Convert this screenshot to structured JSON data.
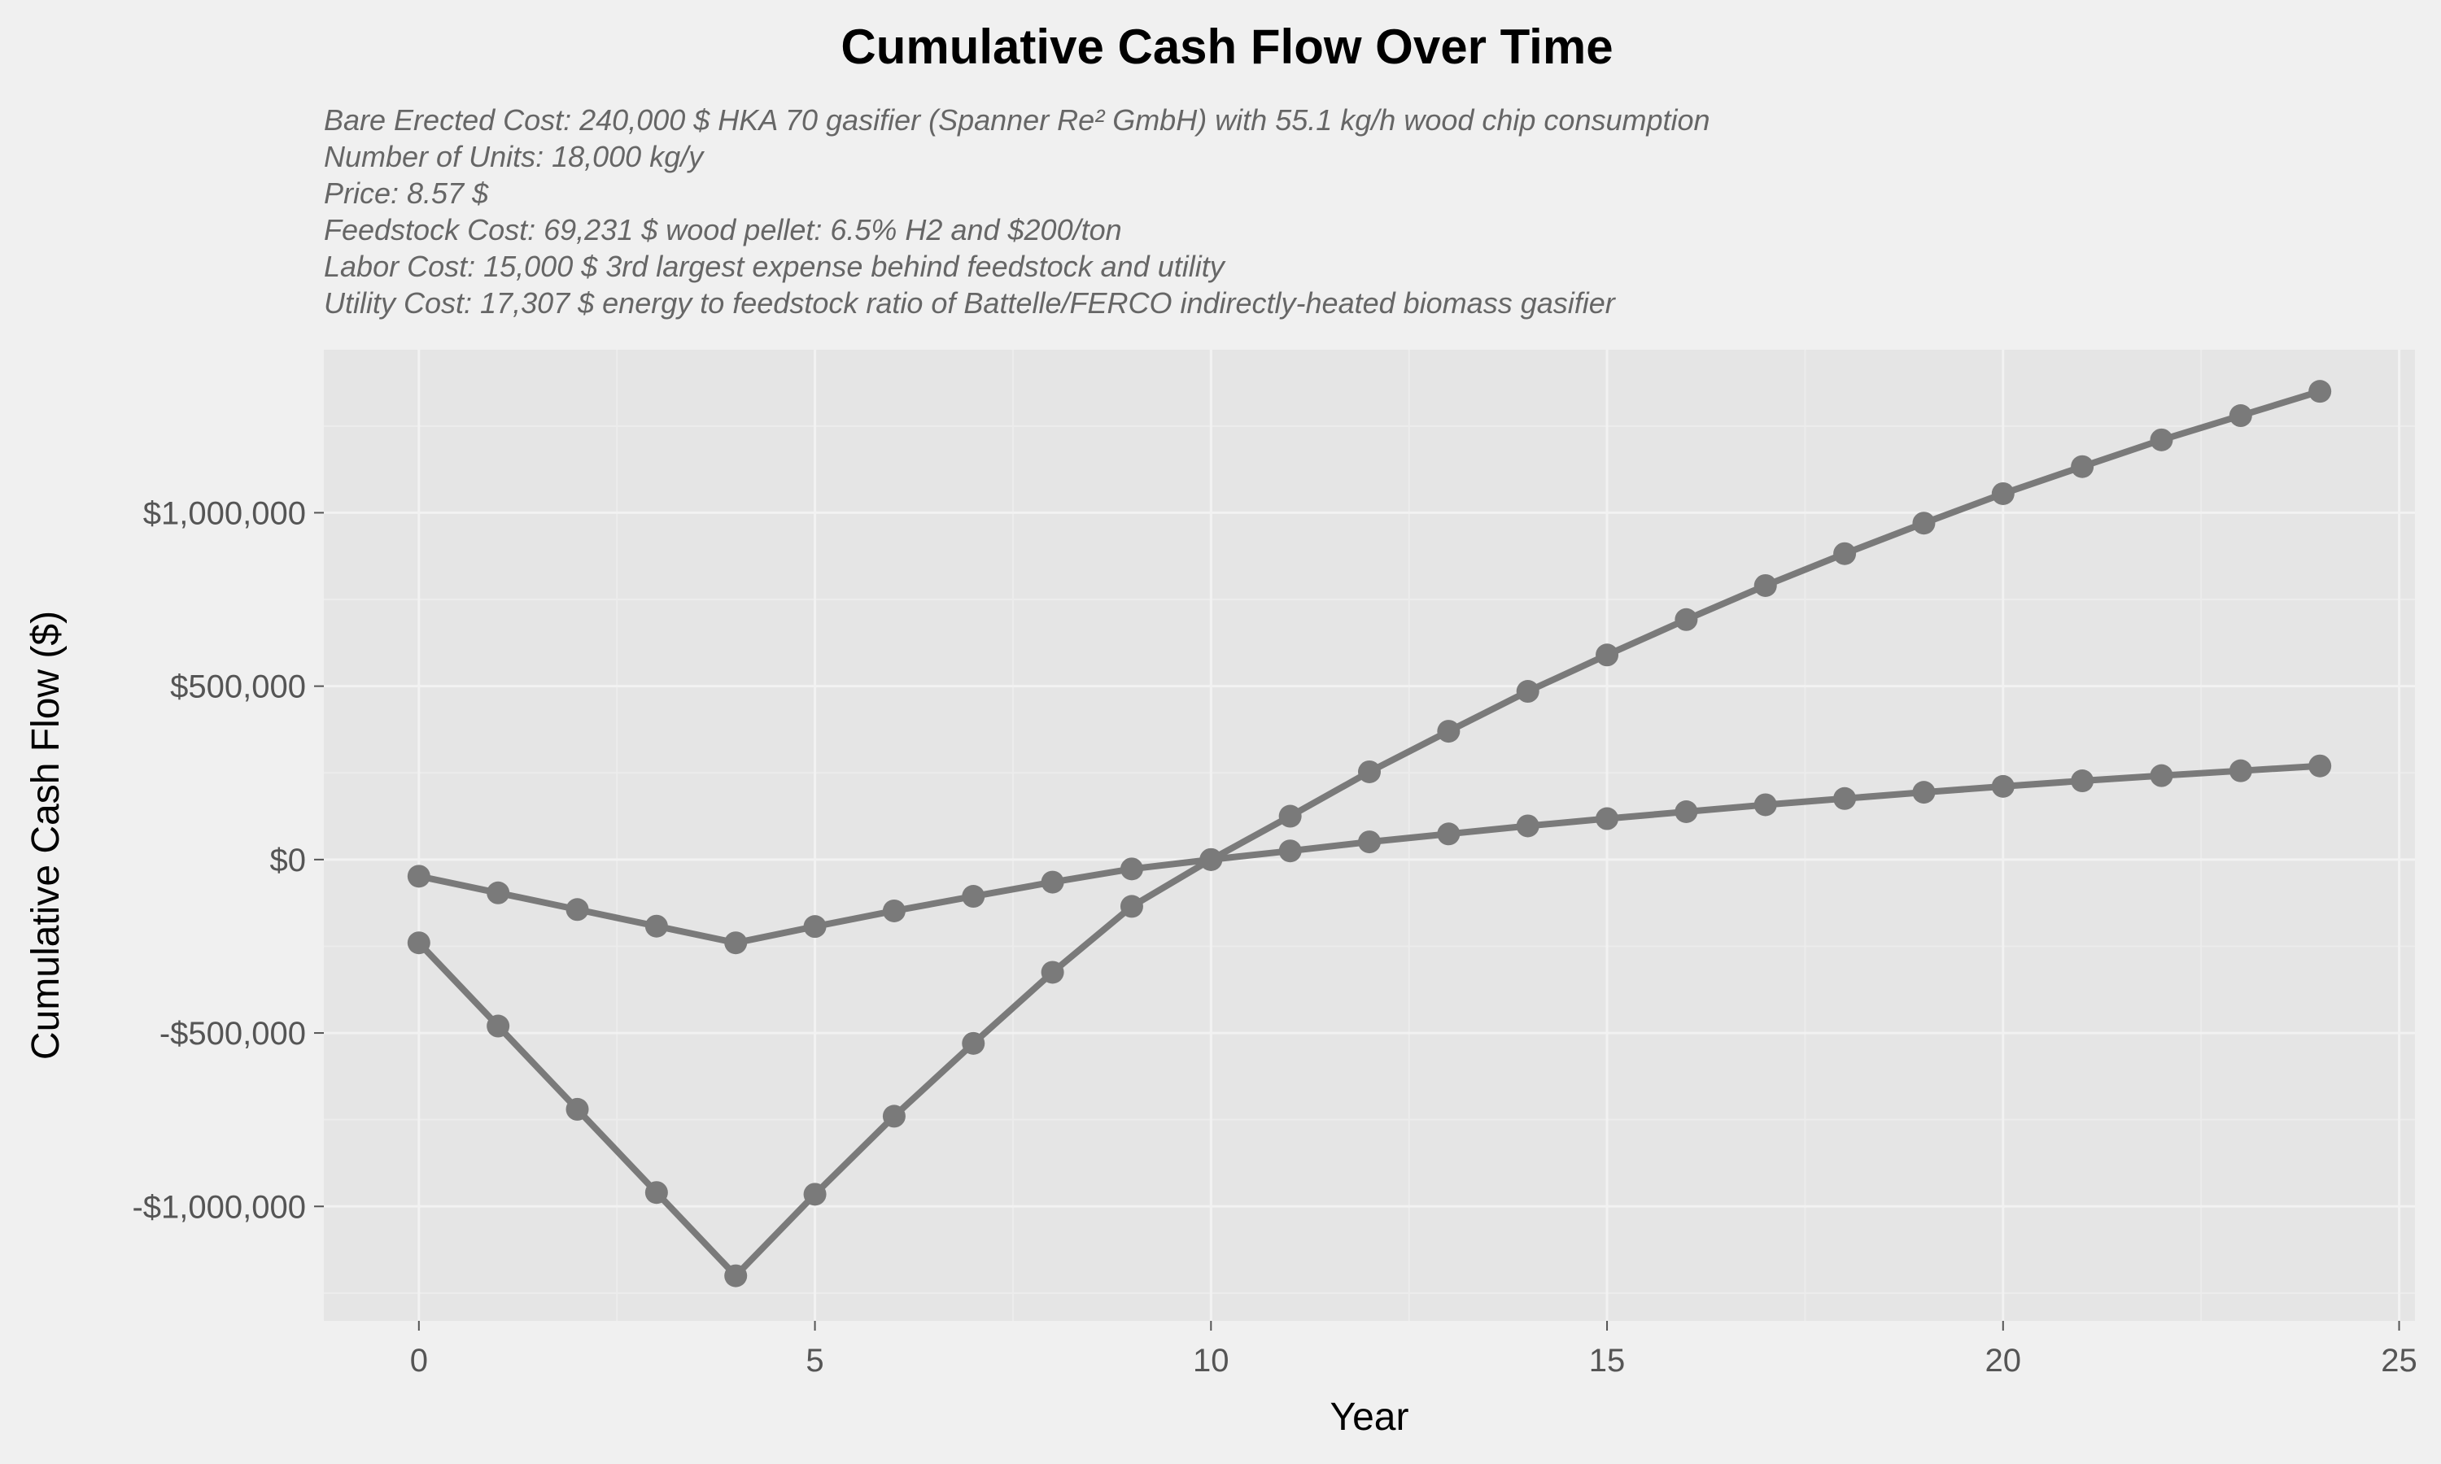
{
  "chart_data": {
    "type": "line",
    "title": "Cumulative Cash Flow Over Time",
    "subtitle_lines": [
      "Bare Erected Cost: 240,000 $ HKA 70 gasifier (Spanner Re² GmbH) with 55.1 kg/h wood chip consumption",
      "Number of Units: 18,000 kg/y",
      "Price: 8.57 $",
      "Feedstock Cost: 69,231 $ wood pellet: 6.5% H2 and $200/ton",
      "Labor Cost: 15,000 $ 3rd largest expense behind feedstock and utility",
      "Utility Cost: 17,307 $ energy to feedstock ratio of Battelle/FERCO indirectly-heated biomass gasifier"
    ],
    "xlabel": "Year",
    "ylabel": "Cumulative Cash Flow ($)",
    "xlim": [
      -1.2,
      25.2
    ],
    "ylim": [
      -1330000,
      1470000
    ],
    "x_ticks": [
      0,
      5,
      10,
      15,
      20,
      25
    ],
    "x_tick_labels": [
      "0",
      "5",
      "10",
      "15",
      "20",
      "25"
    ],
    "y_ticks": [
      -1000000,
      -500000,
      0,
      500000,
      1000000
    ],
    "y_tick_labels": [
      "-$1,000,000",
      "-$500,000",
      "$0",
      "$500,000",
      "$1,000,000"
    ],
    "grid": true,
    "legend": "none",
    "line_color": "#7a7a7a",
    "x": [
      0,
      1,
      2,
      3,
      4,
      5,
      6,
      7,
      8,
      9,
      10,
      11,
      12,
      13,
      14,
      15,
      16,
      17,
      18,
      19,
      20,
      21,
      22,
      23,
      24
    ],
    "series": [
      {
        "values": [
          -240000,
          -480000,
          -720000,
          -960000,
          -1200000,
          -965000,
          -740000,
          -530000,
          -325000,
          -135000,
          0,
          125000,
          253000,
          370000,
          485000,
          590000,
          692000,
          790000,
          882000,
          970000,
          1055000,
          1133000,
          1210000,
          1280000,
          1350000
        ]
      },
      {
        "values": [
          -48000,
          -96000,
          -144000,
          -192000,
          -240000,
          -193000,
          -148000,
          -106000,
          -65000,
          -27000,
          0,
          25000,
          51000,
          74000,
          97000,
          118000,
          138000,
          158000,
          176000,
          194000,
          211000,
          227000,
          242000,
          256000,
          270000
        ]
      }
    ]
  }
}
